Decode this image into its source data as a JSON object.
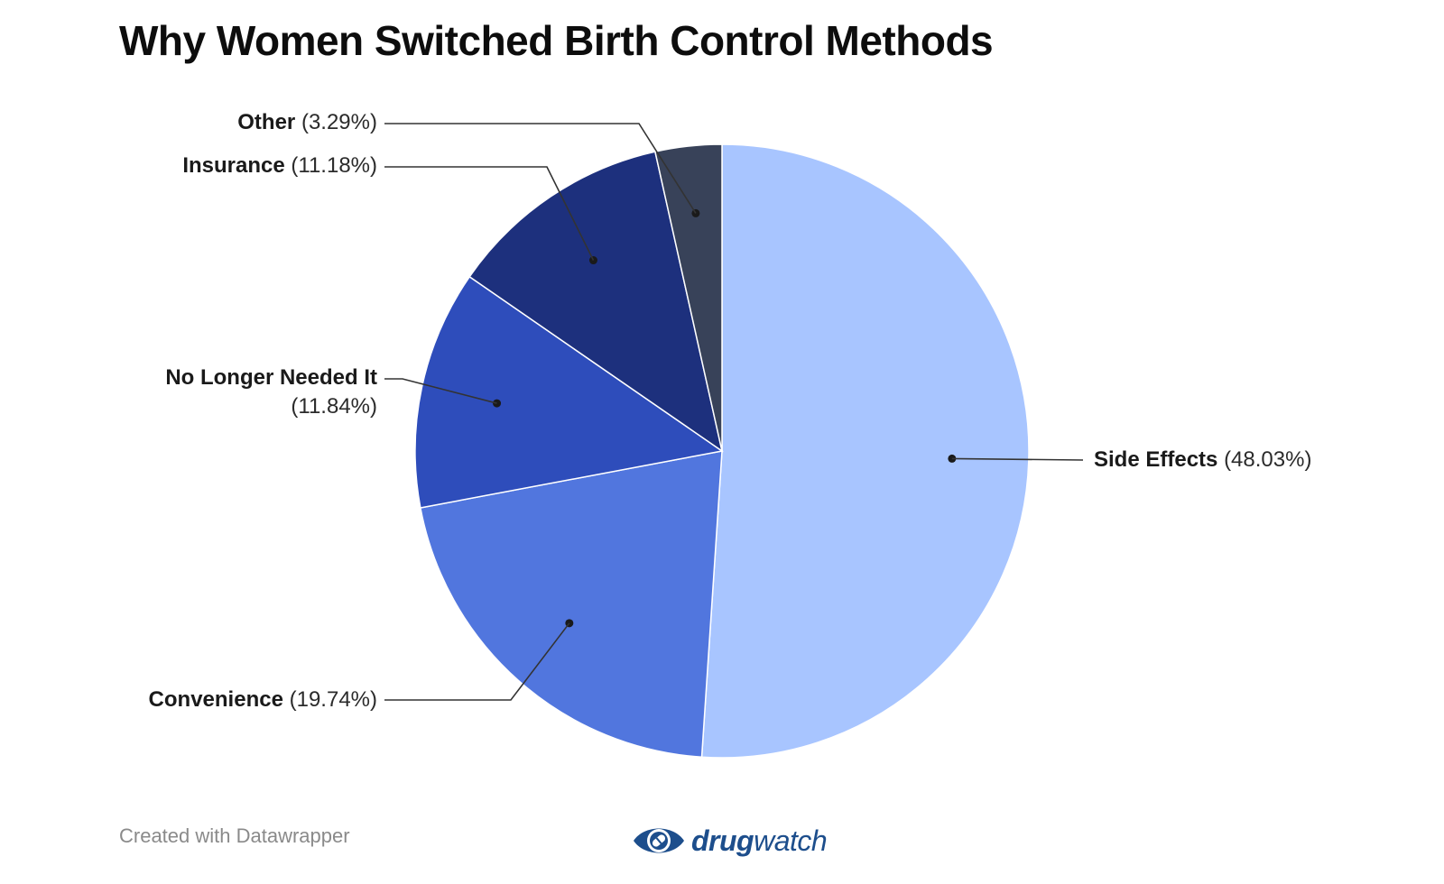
{
  "title": "Why Women Switched Birth Control Methods",
  "footer": {
    "credit": "Created with Datawrapper"
  },
  "brand": {
    "name_bold": "drug",
    "name_light": "watch",
    "logo_icon": "eye-pill-icon",
    "color": "#1d4e8c"
  },
  "chart_data": {
    "type": "pie",
    "title": "Why Women Switched Birth Control Methods",
    "slices": [
      {
        "label": "Side Effects",
        "value": 48.03,
        "value_label": "(48.03%)",
        "color": "#a8c5ff"
      },
      {
        "label": "Convenience",
        "value": 19.74,
        "value_label": "(19.74%)",
        "color": "#5176de"
      },
      {
        "label": "No Longer Needed It",
        "value": 11.84,
        "value_label": "(11.84%)",
        "color": "#2e4dbb"
      },
      {
        "label": "Insurance",
        "value": 11.18,
        "value_label": "(11.18%)",
        "color": "#1d307d"
      },
      {
        "label": "Other",
        "value": 3.29,
        "value_label": "(3.29%)",
        "color": "#384259"
      }
    ],
    "start_angle": "12 o'clock",
    "direction": "clockwise",
    "legend": "none",
    "labels": "outside with leader lines"
  }
}
